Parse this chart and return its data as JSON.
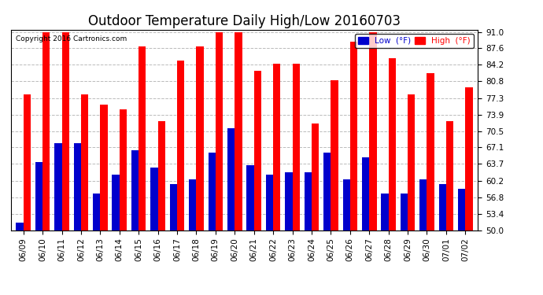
{
  "title": "Outdoor Temperature Daily High/Low 20160703",
  "copyright": "Copyright 2016 Cartronics.com",
  "dates": [
    "06/09",
    "06/10",
    "06/11",
    "06/12",
    "06/13",
    "06/14",
    "06/15",
    "06/16",
    "06/17",
    "06/18",
    "06/19",
    "06/20",
    "06/21",
    "06/22",
    "06/23",
    "06/24",
    "06/25",
    "06/26",
    "06/27",
    "06/28",
    "06/29",
    "06/30",
    "07/01",
    "07/02"
  ],
  "highs": [
    78.0,
    91.0,
    91.0,
    78.0,
    76.0,
    75.0,
    88.0,
    72.5,
    85.0,
    88.0,
    91.0,
    91.0,
    83.0,
    84.5,
    84.5,
    72.0,
    81.0,
    89.0,
    91.0,
    85.5,
    78.0,
    82.5,
    72.5,
    79.5
  ],
  "lows": [
    51.5,
    64.0,
    68.0,
    68.0,
    57.5,
    61.5,
    66.5,
    63.0,
    59.5,
    60.5,
    66.0,
    71.0,
    63.5,
    61.5,
    62.0,
    62.0,
    66.0,
    60.5,
    65.0,
    57.5,
    57.5,
    60.5,
    59.5,
    58.5
  ],
  "ylim_min": 50.0,
  "ylim_max": 91.0,
  "yticks": [
    50.0,
    53.4,
    56.8,
    60.2,
    63.7,
    67.1,
    70.5,
    73.9,
    77.3,
    80.8,
    84.2,
    87.6,
    91.0
  ],
  "bar_width": 0.38,
  "high_color": "#ff0000",
  "low_color": "#0000cc",
  "bg_color": "#ffffff",
  "grid_color": "#bbbbbb",
  "title_fontsize": 12,
  "tick_fontsize": 7.5,
  "legend_high_label": "High  (°F)",
  "legend_low_label": "Low  (°F)"
}
